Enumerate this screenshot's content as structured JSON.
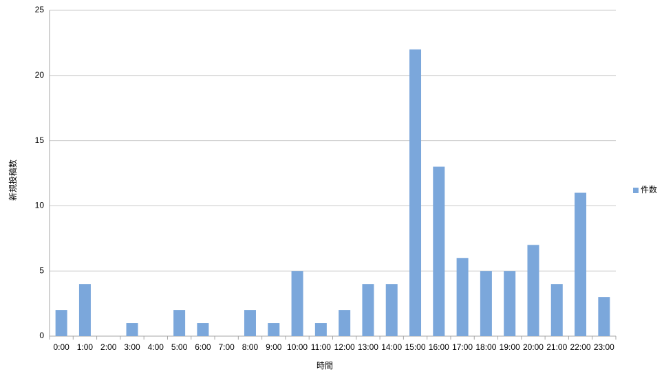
{
  "chart_data": {
    "type": "bar",
    "x_label": "時間",
    "y_label": "新規投稿数",
    "categories": [
      "0:00",
      "1:00",
      "2:00",
      "3:00",
      "4:00",
      "5:00",
      "6:00",
      "7:00",
      "8:00",
      "9:00",
      "10:00",
      "11:00",
      "12:00",
      "13:00",
      "14:00",
      "15:00",
      "16:00",
      "17:00",
      "18:00",
      "19:00",
      "20:00",
      "21:00",
      "22:00",
      "23:00"
    ],
    "series": [
      {
        "name": "件数",
        "color": "#7ba7db",
        "values": [
          2,
          4,
          0,
          1,
          0,
          2,
          1,
          0,
          2,
          1,
          5,
          1,
          2,
          4,
          4,
          22,
          13,
          6,
          5,
          5,
          7,
          4,
          11,
          3
        ]
      }
    ],
    "ylim": [
      0,
      25
    ],
    "yticks": [
      0,
      5,
      10,
      15,
      20,
      25
    ],
    "grid": true,
    "legend": "right"
  }
}
